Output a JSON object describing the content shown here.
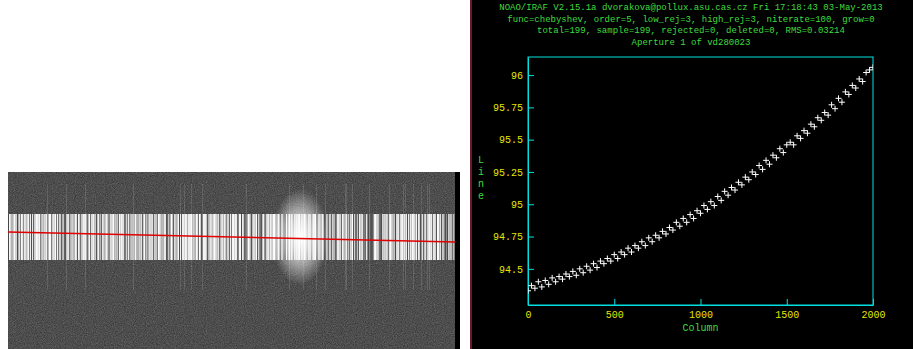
{
  "chart_data": {
    "type": "scatter",
    "header": [
      "NOAO/IRAF V2.15.1a dvorakova@pollux.asu.cas.cz Fri 17:18:43 03-May-2013",
      "func=chebyshev, order=5, low_rej=3, high_rej=3, niterate=100, grow=0",
      "total=199, sample=199, rejected=0, deleted=0, RMS=0.03214"
    ],
    "title": "Aperture 1 of vd280023",
    "x_label": "Column",
    "y_label": "Line",
    "marker": "plus",
    "color": "#ffffff",
    "grid": false,
    "xlim": [
      0,
      2000
    ],
    "ylim": [
      94.22,
      96.14
    ],
    "xticks": [
      0,
      500,
      1000,
      1500,
      2000
    ],
    "yticks": [
      94.5,
      94.75,
      95,
      95.25,
      95.5,
      95.75,
      96
    ],
    "x": [
      0,
      20,
      40,
      60,
      80,
      100,
      120,
      140,
      160,
      180,
      200,
      220,
      240,
      260,
      280,
      300,
      320,
      340,
      360,
      380,
      400,
      420,
      440,
      460,
      480,
      500,
      520,
      540,
      560,
      580,
      600,
      620,
      640,
      660,
      680,
      700,
      720,
      740,
      760,
      780,
      800,
      820,
      840,
      860,
      880,
      900,
      920,
      940,
      960,
      980,
      1000,
      1020,
      1040,
      1060,
      1080,
      1100,
      1120,
      1140,
      1160,
      1180,
      1200,
      1220,
      1240,
      1260,
      1280,
      1300,
      1320,
      1340,
      1360,
      1380,
      1400,
      1420,
      1440,
      1460,
      1480,
      1500,
      1520,
      1540,
      1560,
      1580,
      1600,
      1620,
      1640,
      1660,
      1680,
      1700,
      1720,
      1740,
      1760,
      1780,
      1800,
      1820,
      1840,
      1860,
      1880,
      1900,
      1920,
      1940,
      1960,
      1980,
      2000
    ],
    "values": [
      94.33,
      94.37,
      94.35,
      94.4,
      94.36,
      94.41,
      94.38,
      94.43,
      94.4,
      94.44,
      94.42,
      94.46,
      94.44,
      94.48,
      94.45,
      94.5,
      94.47,
      94.52,
      94.49,
      94.54,
      94.51,
      94.56,
      94.54,
      94.58,
      94.56,
      94.61,
      94.58,
      94.63,
      94.61,
      94.66,
      94.63,
      94.68,
      94.66,
      94.71,
      94.68,
      94.74,
      94.71,
      94.76,
      94.74,
      94.79,
      94.77,
      94.82,
      94.8,
      94.86,
      94.83,
      94.89,
      94.86,
      94.92,
      94.89,
      94.95,
      94.93,
      94.99,
      94.96,
      95.02,
      94.99,
      95.06,
      95.03,
      95.1,
      95.07,
      95.13,
      95.11,
      95.17,
      95.15,
      95.21,
      95.19,
      95.25,
      95.23,
      95.3,
      95.27,
      95.34,
      95.31,
      95.38,
      95.36,
      95.43,
      95.4,
      95.46,
      95.48,
      95.46,
      95.53,
      95.51,
      95.57,
      95.55,
      95.62,
      95.6,
      95.67,
      95.65,
      95.71,
      95.69,
      95.77,
      95.74,
      95.82,
      95.79,
      95.87,
      95.85,
      95.92,
      95.9,
      95.97,
      95.95,
      96.02,
      96.04,
      96.06
    ]
  }
}
